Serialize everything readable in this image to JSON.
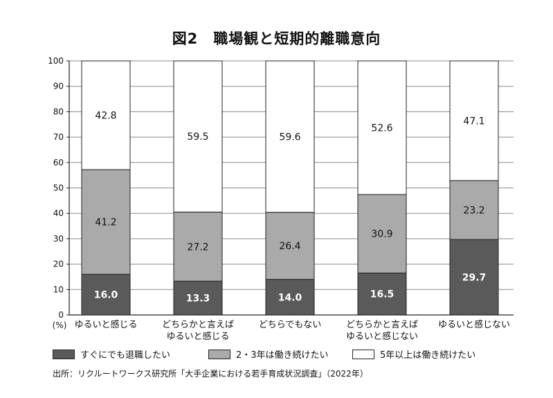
{
  "title": "図2　職場観と短期的離職意向",
  "chart_data": {
    "type": "bar",
    "stacked": true,
    "ylim": [
      0,
      100
    ],
    "yticks": [
      "0",
      "10",
      "20",
      "30",
      "40",
      "50",
      "60",
      "70",
      "80",
      "90",
      "100"
    ],
    "unit_label": "(%)",
    "grid": true,
    "categories": [
      [
        "ゆるいと感じる"
      ],
      [
        "どちらかと言えば",
        "ゆるいと感じる"
      ],
      [
        "どちらでもない"
      ],
      [
        "どちらかと言えば",
        "ゆるいと感じない"
      ],
      [
        "ゆるいと感じない"
      ]
    ],
    "series": [
      {
        "name": "すぐにでも退職したい",
        "color": "#5a5a5a",
        "label_color": "#ffffff",
        "values": [
          16.0,
          13.3,
          14.0,
          16.5,
          29.7
        ],
        "labels": [
          "16.0",
          "13.3",
          "14.0",
          "16.5",
          "29.7"
        ]
      },
      {
        "name": "2・3年は働き続けたい",
        "color": "#aaaaaa",
        "label_color": "#111111",
        "values": [
          41.2,
          27.2,
          26.4,
          30.9,
          23.2
        ],
        "labels": [
          "41.2",
          "27.2",
          "26.4",
          "30.9",
          "23.2"
        ]
      },
      {
        "name": "5年以上は働き続けたい",
        "color": "#ffffff",
        "label_color": "#111111",
        "values": [
          42.8,
          59.5,
          59.6,
          52.6,
          47.1
        ],
        "labels": [
          "42.8",
          "59.5",
          "59.6",
          "52.6",
          "47.1"
        ]
      }
    ],
    "legend_position": "bottom"
  },
  "source": "出所：リクルートワークス研究所「大手企業における若手育成状況調査」（2022年）"
}
